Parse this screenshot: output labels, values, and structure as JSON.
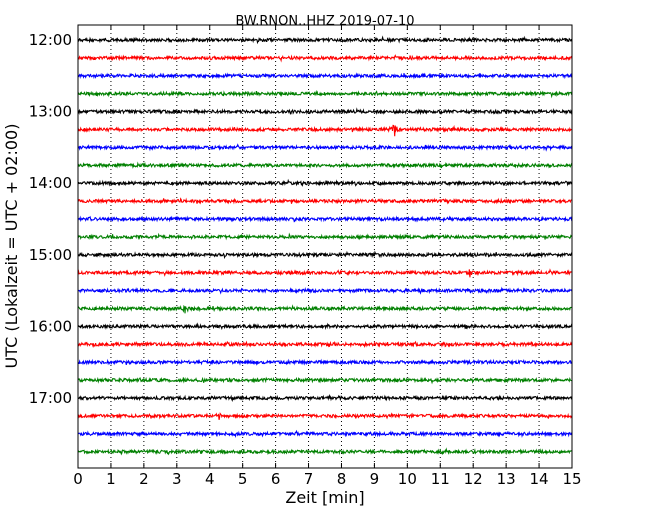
{
  "chart_data": {
    "type": "line",
    "title": "BW.RNON..HHZ 2019-07-10",
    "xlabel": "Zeit  [min]",
    "ylabel": "UTC (Lokalzeit = UTC + 02:00)",
    "xlim": [
      0,
      15
    ],
    "x_ticks": [
      "0",
      "1",
      "2",
      "3",
      "4",
      "5",
      "6",
      "7",
      "8",
      "9",
      "10",
      "11",
      "12",
      "13",
      "14",
      "15"
    ],
    "y_tick_labels": [
      "12:00",
      "13:00",
      "14:00",
      "15:00",
      "16:00",
      "17:00"
    ],
    "trace_colors": [
      "#000000",
      "#ff0000",
      "#0000ff",
      "#008000"
    ],
    "grid": "vertical dotted",
    "traces": [
      {
        "start": "12:00",
        "color": "#000000"
      },
      {
        "start": "12:15",
        "color": "#ff0000"
      },
      {
        "start": "12:30",
        "color": "#0000ff"
      },
      {
        "start": "12:45",
        "color": "#008000"
      },
      {
        "start": "13:00",
        "color": "#000000"
      },
      {
        "start": "13:15",
        "color": "#ff0000",
        "event_min": 9.6,
        "event_amp": 1.0
      },
      {
        "start": "13:30",
        "color": "#0000ff"
      },
      {
        "start": "13:45",
        "color": "#008000"
      },
      {
        "start": "14:00",
        "color": "#000000"
      },
      {
        "start": "14:15",
        "color": "#ff0000"
      },
      {
        "start": "14:30",
        "color": "#0000ff"
      },
      {
        "start": "14:45",
        "color": "#008000"
      },
      {
        "start": "15:00",
        "color": "#000000"
      },
      {
        "start": "15:15",
        "color": "#ff0000",
        "event_min": 11.9,
        "event_amp": 0.4
      },
      {
        "start": "15:30",
        "color": "#0000ff"
      },
      {
        "start": "15:45",
        "color": "#008000",
        "event_min": 3.25,
        "event_amp": 0.45
      },
      {
        "start": "16:00",
        "color": "#000000"
      },
      {
        "start": "16:15",
        "color": "#ff0000"
      },
      {
        "start": "16:30",
        "color": "#0000ff"
      },
      {
        "start": "16:45",
        "color": "#008000"
      },
      {
        "start": "17:00",
        "color": "#000000"
      },
      {
        "start": "17:15",
        "color": "#ff0000",
        "event_min": 4.3,
        "event_amp": 0.3
      },
      {
        "start": "17:30",
        "color": "#0000ff"
      },
      {
        "start": "17:45",
        "color": "#008000"
      }
    ]
  }
}
